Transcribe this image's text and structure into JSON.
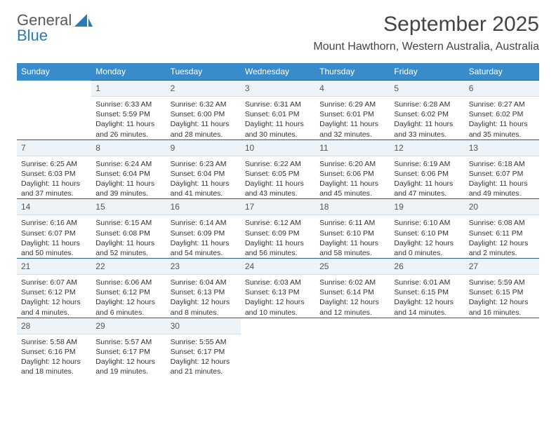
{
  "logo": {
    "text1": "General",
    "text2": "Blue"
  },
  "title": {
    "month": "September 2025",
    "location": "Mount Hawthorn, Western Australia, Australia"
  },
  "colors": {
    "header_bg": "#3a8bc9",
    "header_fg": "#ffffff",
    "daynum_bg": "#eef3f7",
    "row_border": "#2a5a8a",
    "logo_accent": "#2a7ab8",
    "text": "#333333"
  },
  "weekdays": [
    "Sunday",
    "Monday",
    "Tuesday",
    "Wednesday",
    "Thursday",
    "Friday",
    "Saturday"
  ],
  "layout": {
    "rows": 5,
    "cols": 7,
    "first_day_col": 1,
    "last_day": 30
  },
  "days": {
    "1": {
      "sunrise": "6:33 AM",
      "sunset": "5:59 PM",
      "daylight_line1": "Daylight: 11 hours",
      "daylight_line2": "and 26 minutes."
    },
    "2": {
      "sunrise": "6:32 AM",
      "sunset": "6:00 PM",
      "daylight_line1": "Daylight: 11 hours",
      "daylight_line2": "and 28 minutes."
    },
    "3": {
      "sunrise": "6:31 AM",
      "sunset": "6:01 PM",
      "daylight_line1": "Daylight: 11 hours",
      "daylight_line2": "and 30 minutes."
    },
    "4": {
      "sunrise": "6:29 AM",
      "sunset": "6:01 PM",
      "daylight_line1": "Daylight: 11 hours",
      "daylight_line2": "and 32 minutes."
    },
    "5": {
      "sunrise": "6:28 AM",
      "sunset": "6:02 PM",
      "daylight_line1": "Daylight: 11 hours",
      "daylight_line2": "and 33 minutes."
    },
    "6": {
      "sunrise": "6:27 AM",
      "sunset": "6:02 PM",
      "daylight_line1": "Daylight: 11 hours",
      "daylight_line2": "and 35 minutes."
    },
    "7": {
      "sunrise": "6:25 AM",
      "sunset": "6:03 PM",
      "daylight_line1": "Daylight: 11 hours",
      "daylight_line2": "and 37 minutes."
    },
    "8": {
      "sunrise": "6:24 AM",
      "sunset": "6:04 PM",
      "daylight_line1": "Daylight: 11 hours",
      "daylight_line2": "and 39 minutes."
    },
    "9": {
      "sunrise": "6:23 AM",
      "sunset": "6:04 PM",
      "daylight_line1": "Daylight: 11 hours",
      "daylight_line2": "and 41 minutes."
    },
    "10": {
      "sunrise": "6:22 AM",
      "sunset": "6:05 PM",
      "daylight_line1": "Daylight: 11 hours",
      "daylight_line2": "and 43 minutes."
    },
    "11": {
      "sunrise": "6:20 AM",
      "sunset": "6:06 PM",
      "daylight_line1": "Daylight: 11 hours",
      "daylight_line2": "and 45 minutes."
    },
    "12": {
      "sunrise": "6:19 AM",
      "sunset": "6:06 PM",
      "daylight_line1": "Daylight: 11 hours",
      "daylight_line2": "and 47 minutes."
    },
    "13": {
      "sunrise": "6:18 AM",
      "sunset": "6:07 PM",
      "daylight_line1": "Daylight: 11 hours",
      "daylight_line2": "and 49 minutes."
    },
    "14": {
      "sunrise": "6:16 AM",
      "sunset": "6:07 PM",
      "daylight_line1": "Daylight: 11 hours",
      "daylight_line2": "and 50 minutes."
    },
    "15": {
      "sunrise": "6:15 AM",
      "sunset": "6:08 PM",
      "daylight_line1": "Daylight: 11 hours",
      "daylight_line2": "and 52 minutes."
    },
    "16": {
      "sunrise": "6:14 AM",
      "sunset": "6:09 PM",
      "daylight_line1": "Daylight: 11 hours",
      "daylight_line2": "and 54 minutes."
    },
    "17": {
      "sunrise": "6:12 AM",
      "sunset": "6:09 PM",
      "daylight_line1": "Daylight: 11 hours",
      "daylight_line2": "and 56 minutes."
    },
    "18": {
      "sunrise": "6:11 AM",
      "sunset": "6:10 PM",
      "daylight_line1": "Daylight: 11 hours",
      "daylight_line2": "and 58 minutes."
    },
    "19": {
      "sunrise": "6:10 AM",
      "sunset": "6:10 PM",
      "daylight_line1": "Daylight: 12 hours",
      "daylight_line2": "and 0 minutes."
    },
    "20": {
      "sunrise": "6:08 AM",
      "sunset": "6:11 PM",
      "daylight_line1": "Daylight: 12 hours",
      "daylight_line2": "and 2 minutes."
    },
    "21": {
      "sunrise": "6:07 AM",
      "sunset": "6:12 PM",
      "daylight_line1": "Daylight: 12 hours",
      "daylight_line2": "and 4 minutes."
    },
    "22": {
      "sunrise": "6:06 AM",
      "sunset": "6:12 PM",
      "daylight_line1": "Daylight: 12 hours",
      "daylight_line2": "and 6 minutes."
    },
    "23": {
      "sunrise": "6:04 AM",
      "sunset": "6:13 PM",
      "daylight_line1": "Daylight: 12 hours",
      "daylight_line2": "and 8 minutes."
    },
    "24": {
      "sunrise": "6:03 AM",
      "sunset": "6:13 PM",
      "daylight_line1": "Daylight: 12 hours",
      "daylight_line2": "and 10 minutes."
    },
    "25": {
      "sunrise": "6:02 AM",
      "sunset": "6:14 PM",
      "daylight_line1": "Daylight: 12 hours",
      "daylight_line2": "and 12 minutes."
    },
    "26": {
      "sunrise": "6:01 AM",
      "sunset": "6:15 PM",
      "daylight_line1": "Daylight: 12 hours",
      "daylight_line2": "and 14 minutes."
    },
    "27": {
      "sunrise": "5:59 AM",
      "sunset": "6:15 PM",
      "daylight_line1": "Daylight: 12 hours",
      "daylight_line2": "and 16 minutes."
    },
    "28": {
      "sunrise": "5:58 AM",
      "sunset": "6:16 PM",
      "daylight_line1": "Daylight: 12 hours",
      "daylight_line2": "and 18 minutes."
    },
    "29": {
      "sunrise": "5:57 AM",
      "sunset": "6:17 PM",
      "daylight_line1": "Daylight: 12 hours",
      "daylight_line2": "and 19 minutes."
    },
    "30": {
      "sunrise": "5:55 AM",
      "sunset": "6:17 PM",
      "daylight_line1": "Daylight: 12 hours",
      "daylight_line2": "and 21 minutes."
    }
  },
  "labels": {
    "sunrise_prefix": "Sunrise: ",
    "sunset_prefix": "Sunset: "
  }
}
